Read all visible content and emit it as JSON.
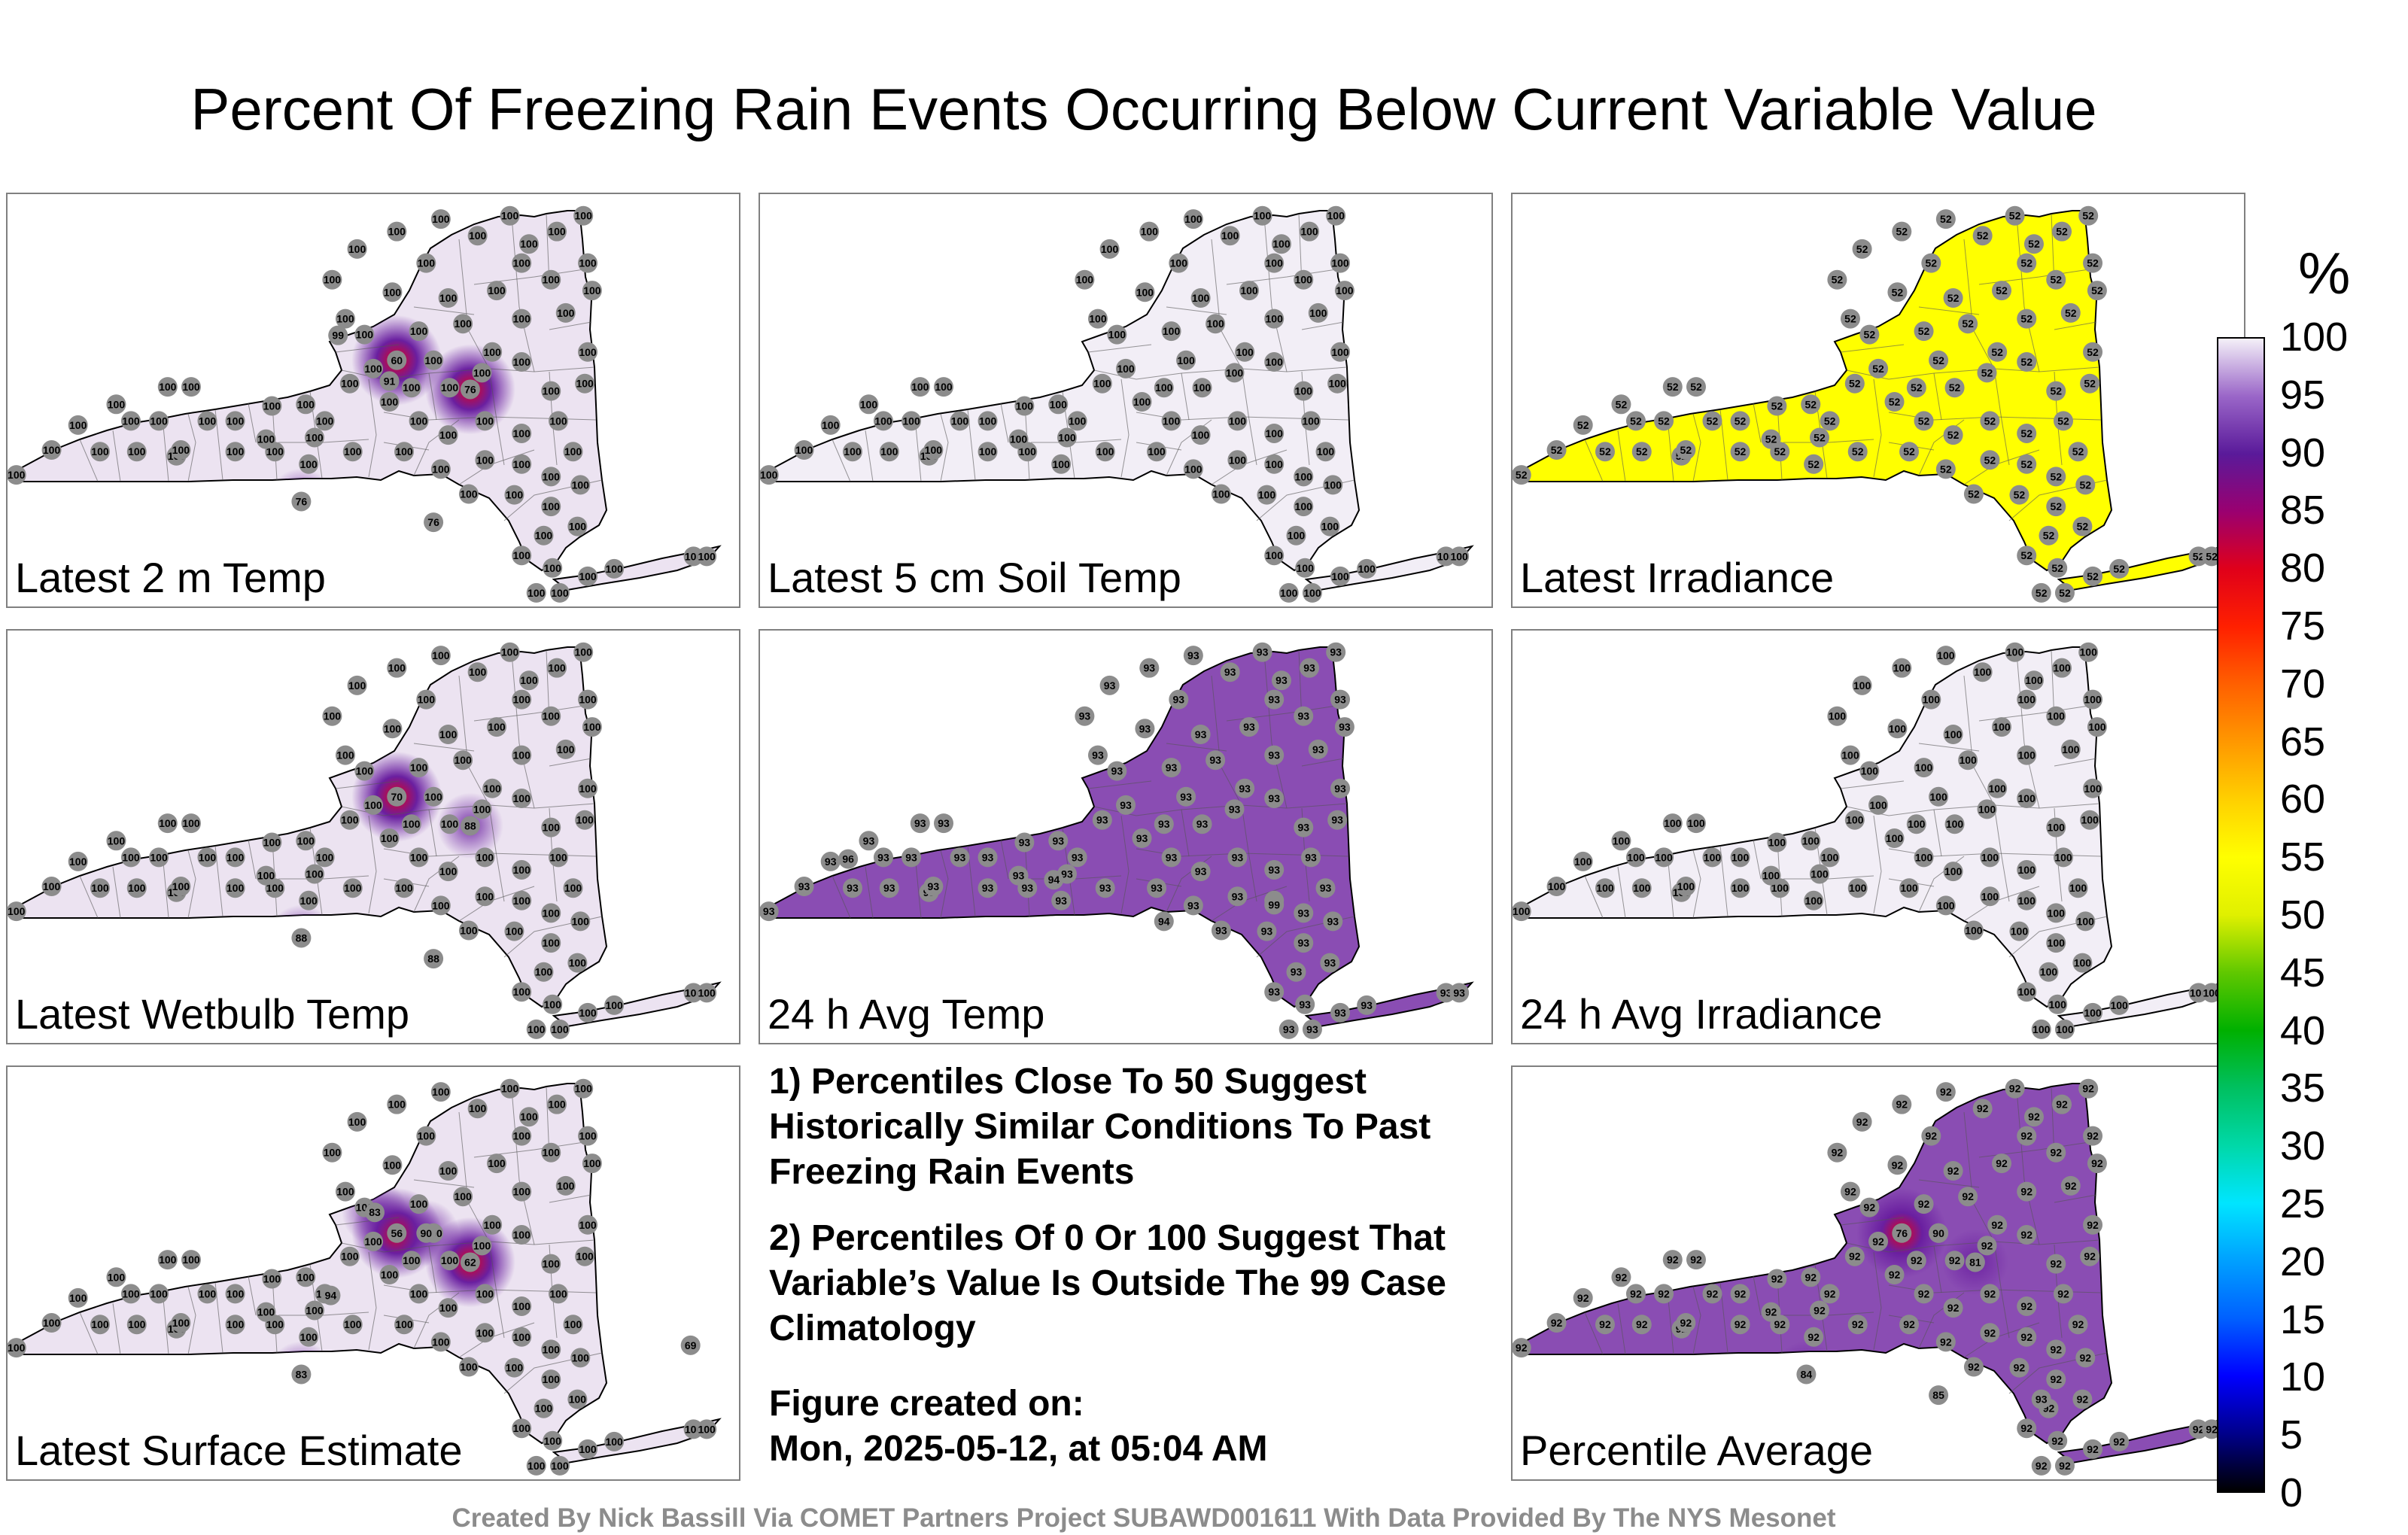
{
  "title": "Percent Of Freezing Rain Events Occurring Below Current Variable Value",
  "colors": {
    "state_light": "#ece3f1",
    "state_white": "#f2eef6",
    "state_yellow": "#ffff00",
    "state_purple": "#8a4db3",
    "hotspot_red": "#e3001b",
    "hotspot_purple": "#6a1fa0",
    "station": "#8c8c8c",
    "border": "#000000",
    "panel_border": "#808080"
  },
  "panels": [
    {
      "label": "Latest 2 m Temp",
      "fill": "#ece3f1",
      "base": "100",
      "special": [
        [
          "60",
          "hot",
          0.53,
          0.4
        ],
        [
          "76",
          "hot",
          0.63,
          0.47
        ],
        [
          "76",
          "warm",
          0.4,
          0.74
        ],
        [
          "76",
          "warm",
          0.58,
          0.79
        ],
        [
          "91",
          "none",
          0.52,
          0.45
        ],
        [
          "99",
          "none",
          0.45,
          0.34
        ]
      ]
    },
    {
      "label": "Latest 5 cm Soil Temp",
      "fill": "#f2eef6",
      "base": "100",
      "special": []
    },
    {
      "label": "Latest Irradiance",
      "fill": "#ffff00",
      "base": "52",
      "special": []
    },
    {
      "label": "Latest Wetbulb Temp",
      "fill": "#ece3f1",
      "base": "100",
      "special": [
        [
          "70",
          "hot",
          0.53,
          0.4
        ],
        [
          "88",
          "warm",
          0.63,
          0.47
        ],
        [
          "88",
          "warm",
          0.4,
          0.74
        ],
        [
          "88",
          "warm",
          0.58,
          0.79
        ]
      ]
    },
    {
      "label": "24 h Avg Temp",
      "fill": "#8a4db3",
      "base": "93",
      "special": [
        [
          "96",
          "none",
          0.12,
          0.55
        ],
        [
          "94",
          "none",
          0.4,
          0.6
        ],
        [
          "99",
          "none",
          0.7,
          0.66
        ],
        [
          "94",
          "none",
          0.55,
          0.7
        ]
      ]
    },
    {
      "label": "24 h Avg Irradiance",
      "fill": "#f2eef6",
      "base": "100",
      "special": []
    },
    {
      "label": "Latest Surface Estimate",
      "fill": "#ece3f1",
      "base": "100",
      "special": [
        [
          "56",
          "hot",
          0.53,
          0.4
        ],
        [
          "62",
          "hot",
          0.63,
          0.47
        ],
        [
          "83",
          "warm",
          0.5,
          0.35
        ],
        [
          "90",
          "warm",
          0.57,
          0.4
        ],
        [
          "69",
          "hot",
          0.93,
          0.67
        ],
        [
          "83",
          "warm",
          0.4,
          0.74
        ],
        [
          "94",
          "none",
          0.44,
          0.55
        ]
      ]
    },
    {
      "label": "Percentile Average",
      "fill": "#8a4db3",
      "base": "92",
      "special": [
        [
          "76",
          "hot",
          0.53,
          0.4
        ],
        [
          "81",
          "warm",
          0.63,
          0.47
        ],
        [
          "84",
          "warm",
          0.4,
          0.74
        ],
        [
          "85",
          "warm",
          0.58,
          0.79
        ],
        [
          "90",
          "none",
          0.58,
          0.4
        ],
        [
          "93",
          "none",
          0.72,
          0.8
        ]
      ]
    }
  ],
  "notes": {
    "note1": "1) Percentiles Close To 50 Suggest Historically Similar Conditions To Past Freezing Rain Events",
    "note2": "2) Percentiles Of 0 Or 100 Suggest That Variable’s Value Is Outside The 99 Case Climatology",
    "created_label": "Figure created on:",
    "created_value": "Mon, 2025-05-12, at 05:04 AM"
  },
  "colorbar": {
    "unit": "%",
    "ticks": [
      "0",
      "5",
      "10",
      "15",
      "20",
      "25",
      "30",
      "35",
      "40",
      "45",
      "50",
      "55",
      "60",
      "65",
      "70",
      "75",
      "80",
      "85",
      "90",
      "95",
      "100"
    ],
    "stops": [
      [
        0,
        "#000000"
      ],
      [
        5,
        "#00008b"
      ],
      [
        10,
        "#0000ff"
      ],
      [
        15,
        "#0060ff"
      ],
      [
        20,
        "#00a0ff"
      ],
      [
        25,
        "#00e5ff"
      ],
      [
        30,
        "#00d8a8"
      ],
      [
        35,
        "#00c060"
      ],
      [
        40,
        "#00b000"
      ],
      [
        45,
        "#60c800"
      ],
      [
        50,
        "#e0f000"
      ],
      [
        55,
        "#ffff00"
      ],
      [
        60,
        "#ffd000"
      ],
      [
        65,
        "#ff9800"
      ],
      [
        70,
        "#ff6000"
      ],
      [
        75,
        "#ff2000"
      ],
      [
        80,
        "#e0001a"
      ],
      [
        85,
        "#9a0070"
      ],
      [
        90,
        "#5a1a9a"
      ],
      [
        95,
        "#9a66c8"
      ],
      [
        100,
        "#f4f0f8"
      ]
    ]
  },
  "footer": "Created By Nick Bassill Via COMET Partners Project SUBAWD001611 With Data Provided By The NYS Mesonet"
}
